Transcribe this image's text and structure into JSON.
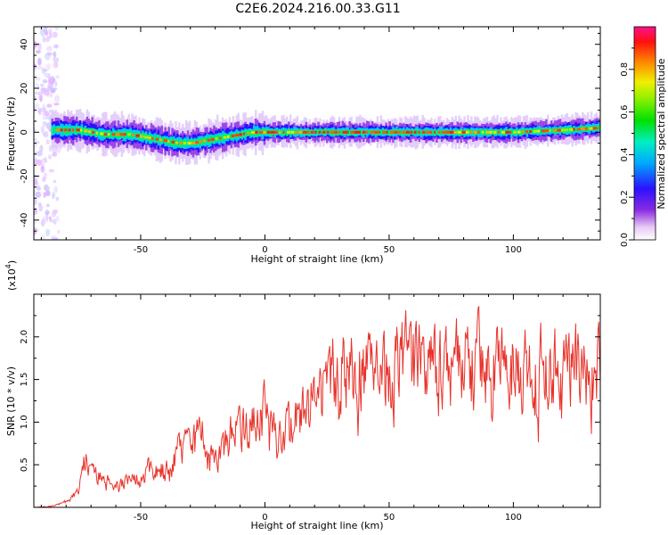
{
  "title": "C2E6.2024.216.00.33.G11",
  "chart_data": [
    {
      "type": "heatmap",
      "xlabel": "Height of straight line (km)",
      "ylabel": "Frequency (Hz)",
      "xlim": [
        -93,
        135
      ],
      "ylim": [
        -49,
        48
      ],
      "xticks": [
        -50,
        0,
        50,
        100
      ],
      "yticks": [
        -40,
        -20,
        0,
        20,
        40
      ],
      "colorbar": {
        "label": "Normalized spectral amplitude",
        "range": [
          0.0,
          1.0
        ],
        "ticks": [
          0.0,
          0.2,
          0.4,
          0.6,
          0.8
        ],
        "tick_labels": [
          "0.0",
          "0.2",
          "0.4",
          "0.6",
          "0.8"
        ]
      },
      "ridge_frequency": {
        "x": [
          -85,
          -80,
          -75,
          -70,
          -65,
          -60,
          -55,
          -50,
          -45,
          -40,
          -35,
          -30,
          -25,
          -20,
          -15,
          -10,
          -5,
          0,
          10,
          20,
          40,
          60,
          80,
          100,
          120,
          135
        ],
        "y": [
          1,
          1,
          1,
          0,
          -1,
          -1,
          -1,
          -2,
          -3,
          -4,
          -5,
          -5,
          -4,
          -3,
          -2,
          -1,
          0,
          0,
          0,
          0,
          0,
          0,
          0,
          0,
          1,
          2
        ]
      }
    },
    {
      "type": "line",
      "xlabel": "Height of straight line (km)",
      "ylabel": "SNR (10 * v/v)",
      "y_multiplier": "(x10",
      "y_multiplier_exp": "4",
      "y_multiplier_close": ")",
      "xlim": [
        -93,
        135
      ],
      "ylim": [
        0,
        2.5
      ],
      "xticks": [
        -50,
        0,
        50,
        100
      ],
      "yticks": [
        0.5,
        1.0,
        1.5,
        2.0
      ],
      "ytick_labels": [
        "0.5",
        "1.0",
        "1.5",
        "2.0"
      ],
      "series": [
        {
          "color": "#e8332b",
          "envelope_x": [
            -93,
            -85,
            -80,
            -75,
            -72,
            -70,
            -65,
            -60,
            -55,
            -50,
            -45,
            -40,
            -35,
            -30,
            -25,
            -20,
            -15,
            -10,
            -5,
            0,
            5,
            10,
            15,
            20,
            25,
            30,
            40,
            50,
            60,
            70,
            80,
            90,
            100,
            110,
            120,
            135
          ],
          "envelope_y": [
            0.0,
            0.02,
            0.08,
            0.2,
            0.7,
            0.45,
            0.35,
            0.3,
            0.35,
            0.35,
            0.55,
            0.45,
            0.7,
            0.75,
            0.95,
            0.6,
            0.85,
            1.0,
            1.05,
            1.2,
            0.95,
            1.0,
            1.15,
            1.35,
            1.5,
            1.75,
            1.7,
            1.75,
            1.8,
            1.8,
            1.8,
            1.8,
            1.75,
            1.75,
            1.75,
            1.75
          ]
        }
      ]
    }
  ]
}
